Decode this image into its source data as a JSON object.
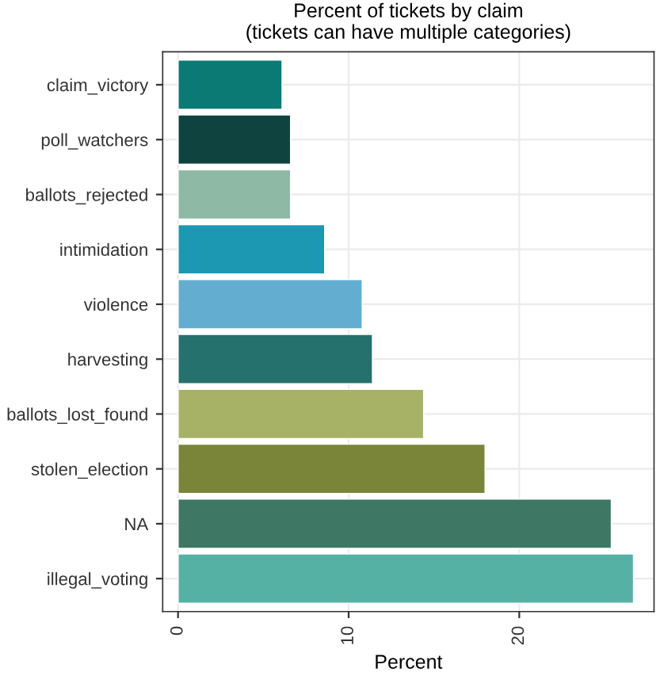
{
  "chart_data": {
    "type": "bar",
    "orientation": "horizontal",
    "title": "Percent of tickets by claim\n(tickets can have multiple categories)",
    "xlabel": "Percent",
    "categories": [
      "claim_victory",
      "poll_watchers",
      "ballots_rejected",
      "intimidation",
      "violence",
      "harvesting",
      "ballots_lost_found",
      "stolen_election",
      "NA",
      "illegal_voting"
    ],
    "values": [
      6.1,
      6.6,
      6.6,
      8.6,
      10.8,
      11.4,
      14.4,
      18.0,
      25.4,
      26.7
    ],
    "colors": [
      "#0b7a75",
      "#0f4340",
      "#8db9a5",
      "#1d98b3",
      "#63add1",
      "#25716d",
      "#a7b267",
      "#7a853a",
      "#3e7763",
      "#56b1a5"
    ],
    "xlim": [
      -0.9,
      27.9
    ],
    "xticks": [
      0,
      10,
      20
    ],
    "grid": true
  }
}
